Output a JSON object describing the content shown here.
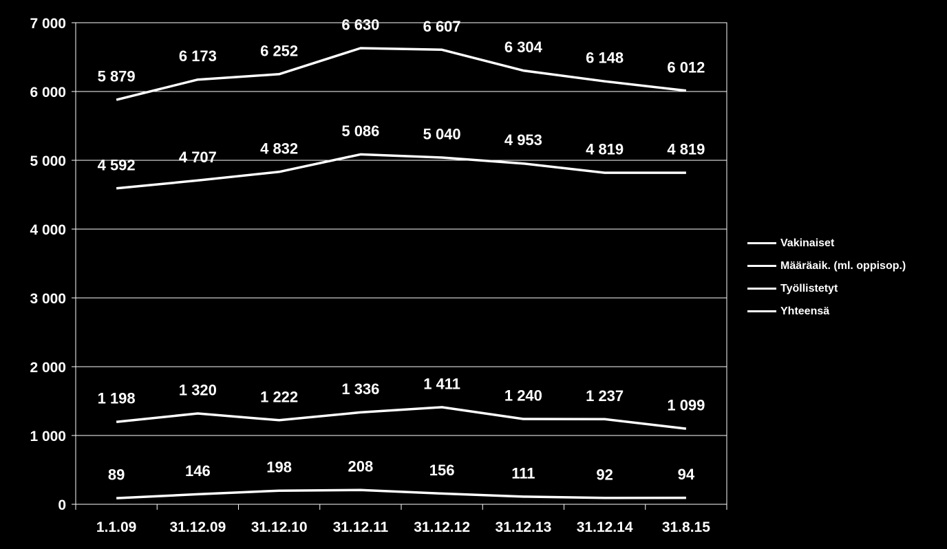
{
  "chart_data": {
    "type": "line",
    "title": "",
    "xlabel": "",
    "ylabel": "",
    "categories": [
      "1.1.09",
      "31.12.09",
      "31.12.10",
      "31.12.11",
      "31.12.12",
      "31.12.13",
      "31.12.14",
      "31.8.15"
    ],
    "ylim": [
      0,
      7000
    ],
    "yticks": [
      0,
      1000,
      2000,
      3000,
      4000,
      5000,
      6000,
      7000
    ],
    "ytick_labels": [
      "0",
      "1 000",
      "2 000",
      "3 000",
      "4 000",
      "5 000",
      "6 000",
      "7 000"
    ],
    "grid": true,
    "legend_position": "right",
    "colors": {
      "background": "#000000",
      "lines": "#ffffff",
      "text": "#ffffff"
    },
    "series": [
      {
        "name": "Vakinaiset",
        "values": [
          4592,
          4707,
          4832,
          5086,
          5040,
          4953,
          4819,
          4819
        ],
        "labels": [
          "4 592",
          "4 707",
          "4 832",
          "5 086",
          "5 040",
          "4 953",
          "4 819",
          "4 819"
        ]
      },
      {
        "name": "Määräaik. (ml. oppisop.)",
        "values": [
          1198,
          1320,
          1222,
          1336,
          1411,
          1240,
          1237,
          1099
        ],
        "labels": [
          "1 198",
          "1 320",
          "1 222",
          "1 336",
          "1 411",
          "1 240",
          "1 237",
          "1 099"
        ]
      },
      {
        "name": "Työllistetyt",
        "values": [
          89,
          146,
          198,
          208,
          156,
          111,
          92,
          94
        ],
        "labels": [
          "89",
          "146",
          "198",
          "208",
          "156",
          "111",
          "92",
          "94"
        ]
      },
      {
        "name": "Yhteensä",
        "values": [
          5879,
          6173,
          6252,
          6630,
          6607,
          6304,
          6148,
          6012
        ],
        "labels": [
          "5 879",
          "6 173",
          "6 252",
          "6 630",
          "6 607",
          "6 304",
          "6 148",
          "6 012"
        ]
      }
    ]
  }
}
